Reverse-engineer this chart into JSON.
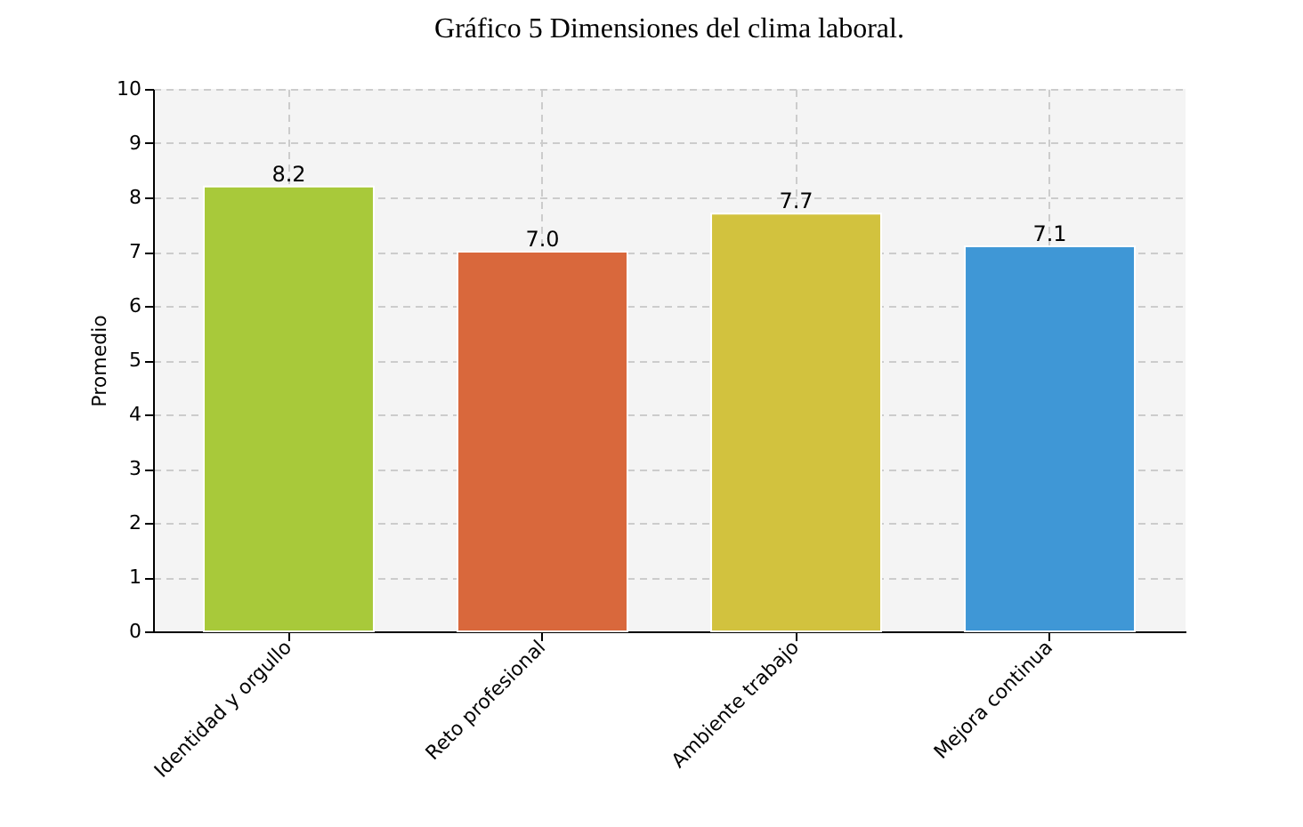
{
  "chart_data": {
    "type": "bar",
    "title": "Gráfico 5 Dimensiones del clima laboral.",
    "ylabel": "Promedio",
    "categories": [
      "Identidad y orgullo",
      "Reto profesional",
      "Ambiente trabajo",
      "Mejora continua"
    ],
    "values": [
      8.2,
      7.0,
      7.7,
      7.1
    ],
    "colors": [
      "#a8c93a",
      "#d9683c",
      "#d2c23e",
      "#3f97d6"
    ],
    "value_labels": [
      "8.2",
      "7.0",
      "7.7",
      "7.1"
    ],
    "ylim": [
      0,
      10
    ],
    "yticks": [
      0,
      1,
      2,
      3,
      4,
      5,
      6,
      7,
      8,
      9,
      10
    ],
    "grid": true
  }
}
